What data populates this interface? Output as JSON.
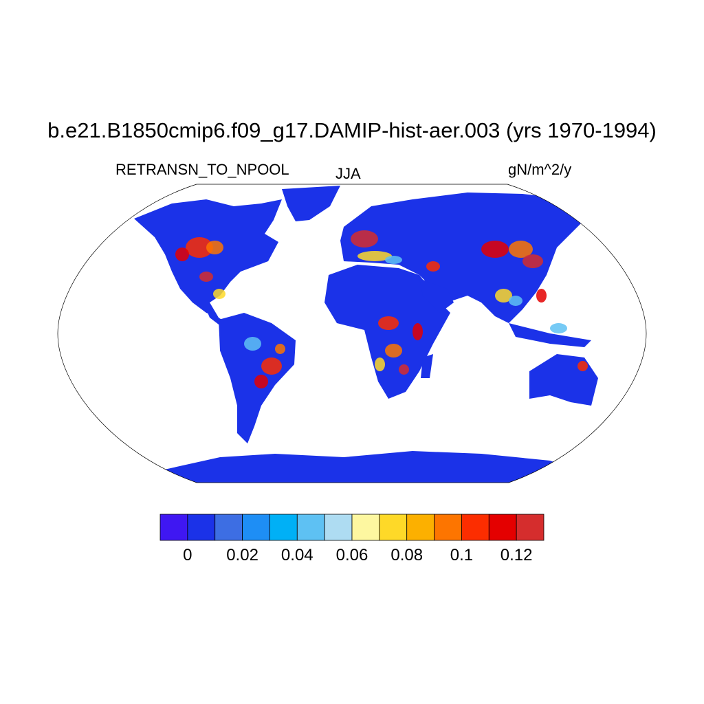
{
  "title": "b.e21.B1850cmip6.f09_g17.DAMIP-hist-aer.003 (yrs 1970-1994)",
  "variable": "RETRANSN_TO_NPOOL",
  "season": "JJA",
  "units": "gN/m^2/y",
  "projection": "robinson",
  "colorbar": {
    "colors": [
      "#3f17f2",
      "#1b32e8",
      "#3d6ee3",
      "#1e8ef5",
      "#00b0f6",
      "#5ec1f3",
      "#aedcf2",
      "#fdf7a0",
      "#fed928",
      "#fcb000",
      "#fd7500",
      "#fc2d00",
      "#e40000",
      "#d52d2d"
    ],
    "ticks": [
      "0",
      "0.02",
      "0.04",
      "0.06",
      "0.08",
      "0.1",
      "0.12"
    ]
  },
  "ocean_color": "#ffffff",
  "land_base_color": "#1b32e8"
}
